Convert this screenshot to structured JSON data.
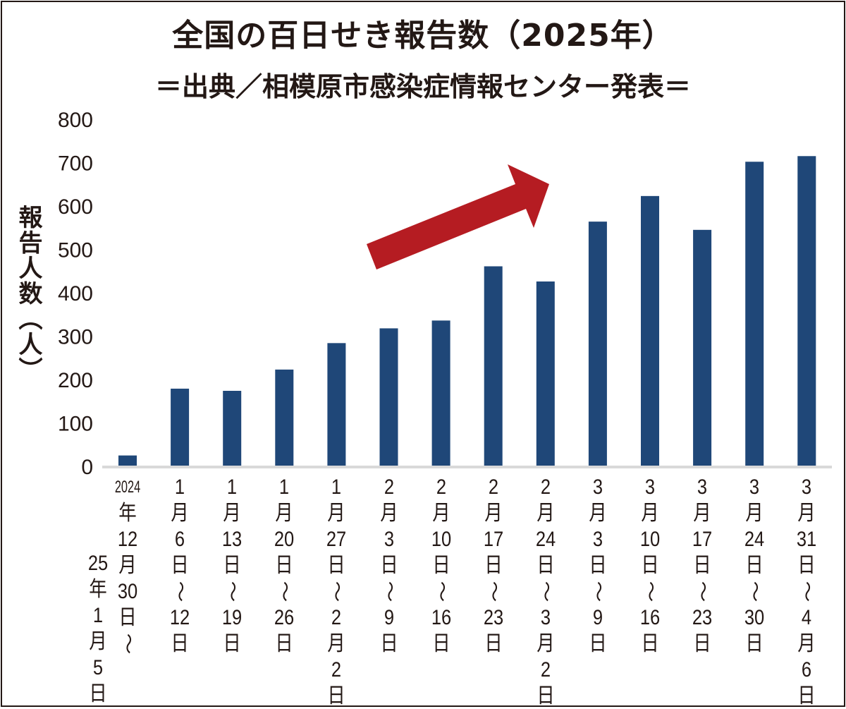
{
  "title": "全国の百日せき報告数（2025年）",
  "subtitle": "＝出典／相模原市感染症情報センター発表＝",
  "colors": {
    "bar": "#1f4778",
    "arrow": "#b51c22",
    "axis": "#d9d9d9"
  },
  "chart_data": {
    "type": "bar",
    "title": "全国の百日せき報告数（2025年）",
    "subtitle": "＝出典／相模原市感染症情報センター発表＝",
    "xlabel": "",
    "ylabel": "報告人数（人）",
    "ylim": [
      0,
      800
    ],
    "yticks": [
      "0",
      "100",
      "200",
      "300",
      "400",
      "500",
      "600",
      "700",
      "800"
    ],
    "grid": false,
    "annotation": "red upward-trend arrow",
    "categories": [
      [
        "2024",
        "年",
        "12",
        "月",
        "30",
        "日",
        "〜",
        "25",
        "年",
        "1",
        "月",
        "5",
        "日"
      ],
      [
        "1",
        "月",
        "6",
        "日",
        "〜",
        "12",
        "日"
      ],
      [
        "1",
        "月",
        "13",
        "日",
        "〜",
        "19",
        "日"
      ],
      [
        "1",
        "月",
        "20",
        "日",
        "〜",
        "26",
        "日"
      ],
      [
        "1",
        "月",
        "27",
        "日",
        "〜",
        "2",
        "月",
        "2",
        "日"
      ],
      [
        "2",
        "月",
        "3",
        "日",
        "〜",
        "9",
        "日"
      ],
      [
        "2",
        "月",
        "10",
        "日",
        "〜",
        "16",
        "日"
      ],
      [
        "2",
        "月",
        "17",
        "日",
        "〜",
        "23",
        "日"
      ],
      [
        "2",
        "月",
        "24",
        "日",
        "〜",
        "3",
        "月",
        "2",
        "日"
      ],
      [
        "3",
        "月",
        "3",
        "日",
        "〜",
        "9",
        "日"
      ],
      [
        "3",
        "月",
        "10",
        "日",
        "〜",
        "16",
        "日"
      ],
      [
        "3",
        "月",
        "17",
        "日",
        "〜",
        "23",
        "日"
      ],
      [
        "3",
        "月",
        "24",
        "日",
        "〜",
        "30",
        "日"
      ],
      [
        "3",
        "月",
        "31",
        "日",
        "〜",
        "4",
        "月",
        "6",
        "日"
      ]
    ],
    "values": [
      25,
      179,
      174,
      223,
      284,
      318,
      336,
      461,
      426,
      564,
      623,
      545,
      702,
      715
    ]
  }
}
